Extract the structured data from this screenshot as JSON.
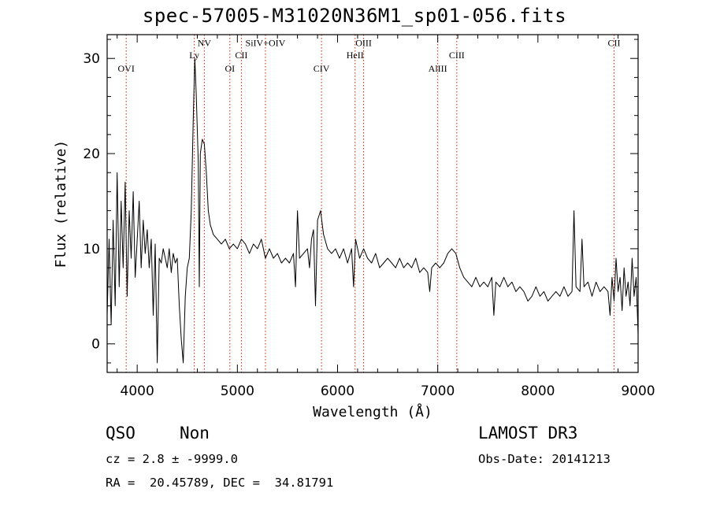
{
  "title": "spec-57005-M31020N36M1_sp01-056.fits",
  "info": {
    "class": "QSO",
    "subclass": "Non",
    "survey": "LAMOST DR3",
    "cz": "cz = 2.8 ± -9999.0",
    "obs_date": "Obs-Date: 20141213",
    "radec": "RA =  20.45789, DEC =  34.81791"
  },
  "colors": {
    "line": "#000000",
    "marker": "#cc2200",
    "axis": "#000000"
  },
  "chart_data": {
    "type": "line",
    "xlabel": "Wavelength (Å)",
    "ylabel": "Flux (relative)",
    "xlim": [
      3700,
      9000
    ],
    "ylim": [
      -3,
      32.5
    ],
    "xticks": [
      4000,
      5000,
      6000,
      7000,
      8000,
      9000
    ],
    "yticks": [
      0,
      10,
      20,
      30
    ],
    "lines": [
      {
        "label": "OVI",
        "x": 3890,
        "label_y": 28.6
      },
      {
        "label": "Ly",
        "x": 4570,
        "label_y": 30.0
      },
      {
        "label": "NV",
        "x": 4670,
        "label_y": 31.3
      },
      {
        "label": "OI",
        "x": 4925,
        "label_y": 28.6
      },
      {
        "label": "CII",
        "x": 5040,
        "label_y": 30.0
      },
      {
        "label": "SiIV+OIV",
        "x": 5280,
        "label_y": 31.3
      },
      {
        "label": "CIV",
        "x": 5840,
        "label_y": 28.6
      },
      {
        "label": "HeII",
        "x": 6175,
        "label_y": 30.0
      },
      {
        "label": "OIII",
        "x": 6260,
        "label_y": 31.3
      },
      {
        "label": "AlIII",
        "x": 7000,
        "label_y": 28.6
      },
      {
        "label": "CIII",
        "x": 7190,
        "label_y": 30.0
      },
      {
        "label": "CII",
        "x": 8760,
        "label_y": 31.3
      }
    ],
    "series": [
      {
        "values": [
          [
            3700,
            3.0
          ],
          [
            3720,
            11.0
          ],
          [
            3740,
            2.0
          ],
          [
            3760,
            13.0
          ],
          [
            3780,
            4.0
          ],
          [
            3800,
            18.0
          ],
          [
            3820,
            6.0
          ],
          [
            3840,
            15.0
          ],
          [
            3860,
            8.0
          ],
          [
            3880,
            17.0
          ],
          [
            3900,
            5.0
          ],
          [
            3920,
            14.0
          ],
          [
            3940,
            9.0
          ],
          [
            3960,
            16.0
          ],
          [
            3980,
            7.0
          ],
          [
            4000,
            11.0
          ],
          [
            4020,
            15.0
          ],
          [
            4040,
            8.0
          ],
          [
            4060,
            13.0
          ],
          [
            4080,
            9.5
          ],
          [
            4100,
            12.0
          ],
          [
            4120,
            8.0
          ],
          [
            4140,
            11.0
          ],
          [
            4160,
            3.0
          ],
          [
            4180,
            10.5
          ],
          [
            4200,
            -2.0
          ],
          [
            4220,
            9.0
          ],
          [
            4240,
            8.5
          ],
          [
            4260,
            10.0
          ],
          [
            4280,
            9.0
          ],
          [
            4300,
            8.0
          ],
          [
            4320,
            10.0
          ],
          [
            4340,
            7.5
          ],
          [
            4360,
            9.5
          ],
          [
            4380,
            8.5
          ],
          [
            4400,
            9.0
          ],
          [
            4420,
            4.0
          ],
          [
            4440,
            0.5
          ],
          [
            4460,
            -2.0
          ],
          [
            4480,
            5.0
          ],
          [
            4500,
            8.0
          ],
          [
            4520,
            9.0
          ],
          [
            4540,
            14.0
          ],
          [
            4560,
            24.0
          ],
          [
            4575,
            30.0
          ],
          [
            4590,
            26.0
          ],
          [
            4610,
            19.0
          ],
          [
            4620,
            6.0
          ],
          [
            4630,
            20.0
          ],
          [
            4650,
            21.5
          ],
          [
            4670,
            21.0
          ],
          [
            4690,
            18.0
          ],
          [
            4710,
            14.0
          ],
          [
            4730,
            12.5
          ],
          [
            4760,
            11.5
          ],
          [
            4800,
            11.0
          ],
          [
            4840,
            10.5
          ],
          [
            4880,
            11.0
          ],
          [
            4920,
            10.0
          ],
          [
            4960,
            10.5
          ],
          [
            5000,
            10.0
          ],
          [
            5040,
            11.0
          ],
          [
            5080,
            10.5
          ],
          [
            5120,
            9.5
          ],
          [
            5160,
            10.5
          ],
          [
            5200,
            10.0
          ],
          [
            5240,
            11.0
          ],
          [
            5280,
            9.0
          ],
          [
            5320,
            10.0
          ],
          [
            5360,
            9.0
          ],
          [
            5400,
            9.5
          ],
          [
            5440,
            8.5
          ],
          [
            5480,
            9.0
          ],
          [
            5520,
            8.5
          ],
          [
            5560,
            9.5
          ],
          [
            5580,
            6.0
          ],
          [
            5600,
            14.0
          ],
          [
            5620,
            9.0
          ],
          [
            5660,
            9.5
          ],
          [
            5700,
            10.0
          ],
          [
            5720,
            8.0
          ],
          [
            5740,
            11.0
          ],
          [
            5760,
            12.0
          ],
          [
            5780,
            4.0
          ],
          [
            5800,
            13.0
          ],
          [
            5830,
            14.0
          ],
          [
            5860,
            11.5
          ],
          [
            5900,
            10.0
          ],
          [
            5940,
            9.5
          ],
          [
            5980,
            10.0
          ],
          [
            6020,
            9.0
          ],
          [
            6060,
            10.0
          ],
          [
            6100,
            8.5
          ],
          [
            6140,
            10.0
          ],
          [
            6160,
            6.0
          ],
          [
            6180,
            11.0
          ],
          [
            6220,
            9.0
          ],
          [
            6260,
            10.0
          ],
          [
            6300,
            9.0
          ],
          [
            6340,
            8.5
          ],
          [
            6380,
            9.5
          ],
          [
            6420,
            8.0
          ],
          [
            6460,
            8.5
          ],
          [
            6500,
            9.0
          ],
          [
            6540,
            8.5
          ],
          [
            6580,
            8.0
          ],
          [
            6620,
            9.0
          ],
          [
            6660,
            8.0
          ],
          [
            6700,
            8.5
          ],
          [
            6740,
            8.0
          ],
          [
            6780,
            9.0
          ],
          [
            6820,
            7.5
          ],
          [
            6860,
            8.0
          ],
          [
            6900,
            7.5
          ],
          [
            6920,
            5.5
          ],
          [
            6940,
            8.0
          ],
          [
            6980,
            8.5
          ],
          [
            7020,
            8.0
          ],
          [
            7060,
            8.5
          ],
          [
            7100,
            9.5
          ],
          [
            7140,
            10.0
          ],
          [
            7180,
            9.5
          ],
          [
            7220,
            8.0
          ],
          [
            7260,
            7.0
          ],
          [
            7300,
            6.5
          ],
          [
            7340,
            6.0
          ],
          [
            7380,
            7.0
          ],
          [
            7420,
            6.0
          ],
          [
            7460,
            6.5
          ],
          [
            7500,
            6.0
          ],
          [
            7540,
            7.0
          ],
          [
            7560,
            3.0
          ],
          [
            7580,
            6.5
          ],
          [
            7620,
            6.0
          ],
          [
            7660,
            7.0
          ],
          [
            7700,
            6.0
          ],
          [
            7740,
            6.5
          ],
          [
            7780,
            5.5
          ],
          [
            7820,
            6.0
          ],
          [
            7860,
            5.5
          ],
          [
            7900,
            4.5
          ],
          [
            7940,
            5.0
          ],
          [
            7980,
            6.0
          ],
          [
            8020,
            5.0
          ],
          [
            8060,
            5.5
          ],
          [
            8100,
            4.5
          ],
          [
            8140,
            5.0
          ],
          [
            8180,
            5.5
          ],
          [
            8220,
            5.0
          ],
          [
            8260,
            6.0
          ],
          [
            8300,
            5.0
          ],
          [
            8340,
            5.5
          ],
          [
            8360,
            14.0
          ],
          [
            8380,
            6.0
          ],
          [
            8420,
            5.5
          ],
          [
            8440,
            11.0
          ],
          [
            8460,
            6.0
          ],
          [
            8500,
            6.5
          ],
          [
            8540,
            5.0
          ],
          [
            8580,
            6.5
          ],
          [
            8620,
            5.5
          ],
          [
            8660,
            6.0
          ],
          [
            8700,
            5.5
          ],
          [
            8720,
            3.0
          ],
          [
            8740,
            7.0
          ],
          [
            8760,
            4.5
          ],
          [
            8780,
            9.0
          ],
          [
            8800,
            5.5
          ],
          [
            8820,
            7.0
          ],
          [
            8840,
            3.5
          ],
          [
            8860,
            8.0
          ],
          [
            8880,
            5.0
          ],
          [
            8900,
            6.5
          ],
          [
            8920,
            4.0
          ],
          [
            8940,
            9.0
          ],
          [
            8960,
            5.0
          ],
          [
            8980,
            7.0
          ],
          [
            9000,
            1.0
          ]
        ]
      }
    ]
  }
}
